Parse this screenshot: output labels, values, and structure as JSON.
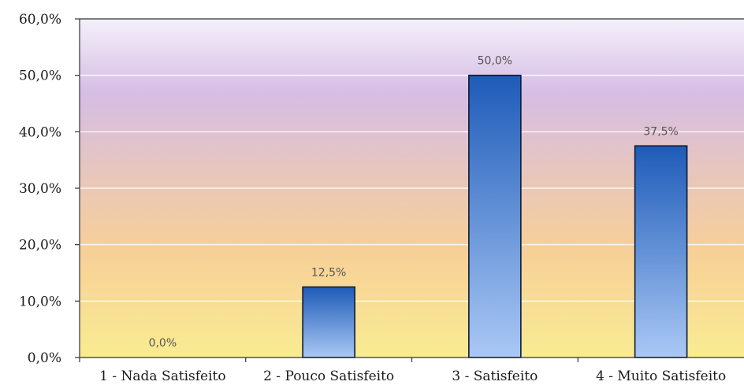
{
  "chart_data": {
    "type": "bar",
    "categories": [
      "1 - Nada Satisfeito",
      "2 - Pouco Satisfeito",
      "3 - Satisfeito",
      "4 - Muito Satisfeito"
    ],
    "values": [
      0.0,
      12.5,
      50.0,
      37.5
    ],
    "data_labels": [
      "0,0%",
      "12,5%",
      "50,0%",
      "37,5%"
    ],
    "ylim": [
      0,
      60
    ],
    "yticks": [
      0,
      10,
      20,
      30,
      40,
      50,
      60
    ],
    "ytick_labels": [
      "0,0%",
      "10,0%",
      "20,0%",
      "30,0%",
      "40,0%",
      "50,0%",
      "60,0%"
    ],
    "title": "",
    "xlabel": "",
    "ylabel": "",
    "grid": true,
    "legend": "none",
    "colors": {
      "bar_light": "#aac8f5",
      "bar_dark": "#1e5bb8",
      "bar_edge": "#0d1a33",
      "bg_top": "#f4f0fb",
      "bg_mid": "#d6bde4",
      "bg_orange": "#f7cf98",
      "bg_bottom": "#f9ec92",
      "gridline": "#ffffff"
    }
  }
}
